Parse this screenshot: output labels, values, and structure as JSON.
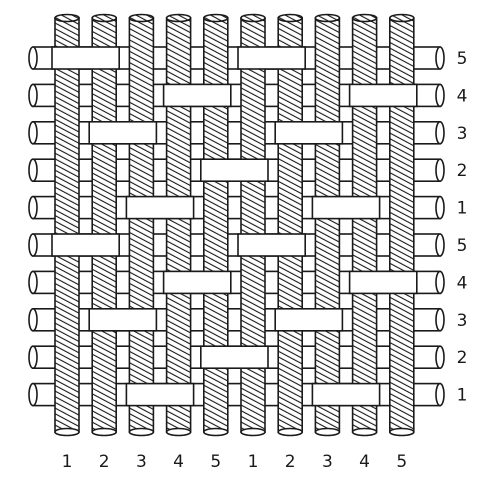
{
  "diagram": {
    "column_labels": [
      "1",
      "2",
      "3",
      "4",
      "5",
      "1",
      "2",
      "3",
      "4",
      "5"
    ],
    "row_labels": [
      "5",
      "4",
      "3",
      "2",
      "1",
      "5",
      "4",
      "3",
      "2",
      "1"
    ],
    "weave_repeat": 5,
    "colors": {
      "background": "#ffffff",
      "ink": "#1a1a1a",
      "weft_fill": "#ffffff",
      "warp_fill": "#ffffff"
    }
  }
}
